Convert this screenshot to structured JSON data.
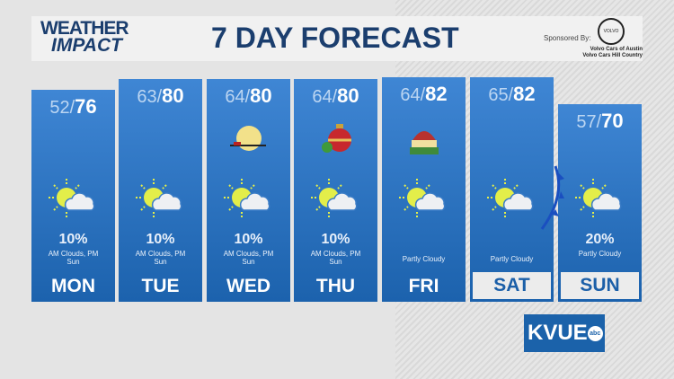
{
  "header": {
    "logo_line1": "WEATHER",
    "logo_line2": "IMPACT",
    "title": "7 DAY FORECAST",
    "sponsored_label": "Sponsored By:",
    "sponsor_logo": "VOLVO",
    "sponsor_line1": "Volvo Cars of Austin",
    "sponsor_line2": "Volvo Cars Hill Country"
  },
  "days": [
    {
      "day": "MON",
      "low": "52",
      "high": "76",
      "precip": "10%",
      "desc": "AM Clouds, PM Sun",
      "icon": "partly-cloudy-icon",
      "decoration": ""
    },
    {
      "day": "TUE",
      "low": "63",
      "high": "80",
      "precip": "10%",
      "desc": "AM Clouds, PM Sun",
      "icon": "partly-cloudy-icon",
      "decoration": ""
    },
    {
      "day": "WED",
      "low": "64",
      "high": "80",
      "precip": "10%",
      "desc": "AM Clouds, PM Sun",
      "icon": "partly-cloudy-icon",
      "decoration": "santa-moon-icon"
    },
    {
      "day": "THU",
      "low": "64",
      "high": "80",
      "precip": "10%",
      "desc": "AM Clouds, PM Sun",
      "icon": "partly-cloudy-icon",
      "decoration": "ornament-icon"
    },
    {
      "day": "FRI",
      "low": "64",
      "high": "82",
      "precip": "",
      "desc": "Partly Cloudy",
      "icon": "partly-cloudy-icon",
      "decoration": "gifts-icon"
    },
    {
      "day": "SAT",
      "low": "65",
      "high": "82",
      "precip": "",
      "desc": "Partly Cloudy",
      "icon": "partly-cloudy-icon",
      "decoration": "",
      "boxed": true
    },
    {
      "day": "SUN",
      "low": "57",
      "high": "70",
      "precip": "20%",
      "desc": "Partly Cloudy",
      "icon": "partly-cloudy-icon",
      "decoration": "",
      "boxed": true
    }
  ],
  "station_logo": {
    "text": "KVUE",
    "network": "abc"
  },
  "colors": {
    "panel_top": "#3f86d4",
    "panel_bottom": "#1c62ad",
    "title": "#1b3e6e",
    "sun": "#e3ee4a",
    "cloud": "#eef0f3"
  }
}
